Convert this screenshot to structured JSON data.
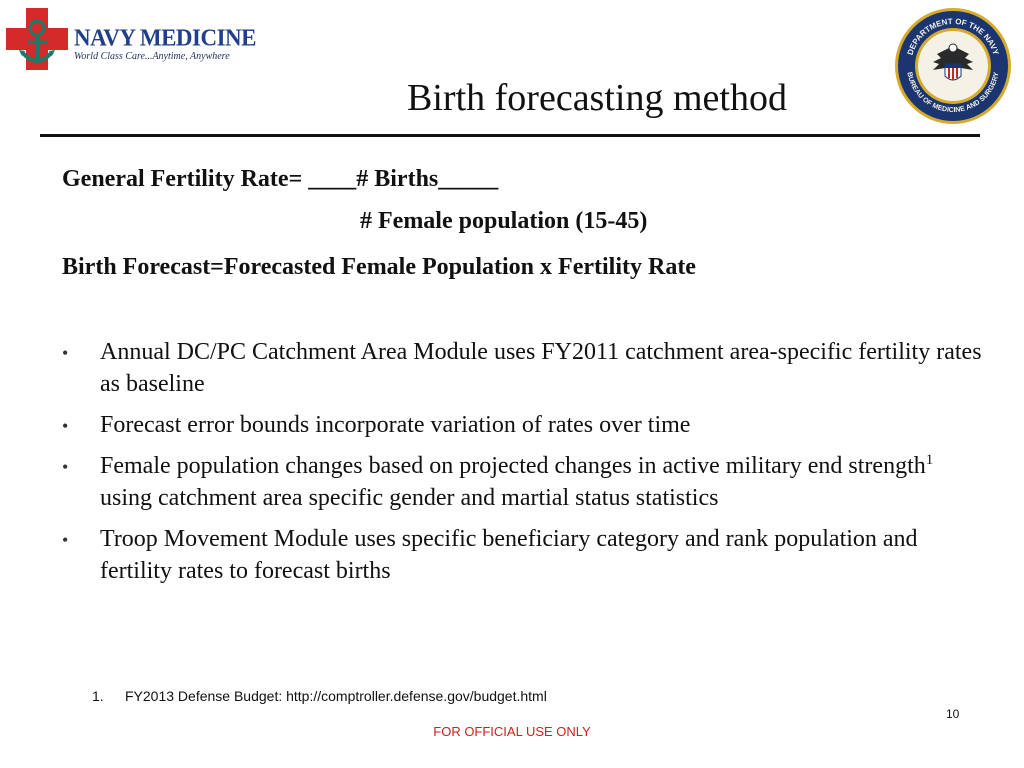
{
  "logo": {
    "name": "NAVY MEDICINE",
    "tagline": "World Class Care...Anytime, Anywhere",
    "colors": {
      "cross": "#d42a2a",
      "anchor": "#1d7a6a",
      "text": "#1f3f8a"
    }
  },
  "seal": {
    "top_text": "DEPARTMENT OF THE NAVY",
    "bottom_text": "BUREAU OF MEDICINE AND SURGERY",
    "colors": {
      "ring": "#1a3570",
      "gold": "#d6aa2b"
    }
  },
  "title": "Birth forecasting method",
  "formula": {
    "line1_label": "General Fertility Rate= ",
    "line1_numerator": "____# Births_____",
    "line2_denominator": "# Female population (15-45)",
    "line3": "Birth Forecast=Forecasted Female Population x Fertility Rate"
  },
  "bullets": [
    {
      "text": "Annual DC/PC Catchment Area Module uses FY2011 catchment area-specific fertility rates as baseline"
    },
    {
      "text": "Forecast error bounds incorporate variation of rates over time"
    },
    {
      "text_before": "Female population changes based on projected changes in active military end strength",
      "sup": "1",
      "text_after": " using catchment area specific gender and martial status statistics"
    },
    {
      "text": "Troop Movement Module uses specific beneficiary category and rank population and fertility rates to forecast births"
    }
  ],
  "bullet_symbol": "•",
  "footnote": {
    "number": "1.",
    "text": "FY2013 Defense Budget: http://comptroller.defense.gov/budget.html"
  },
  "page_number": "10",
  "classification": "FOR OFFICIAL USE ONLY"
}
